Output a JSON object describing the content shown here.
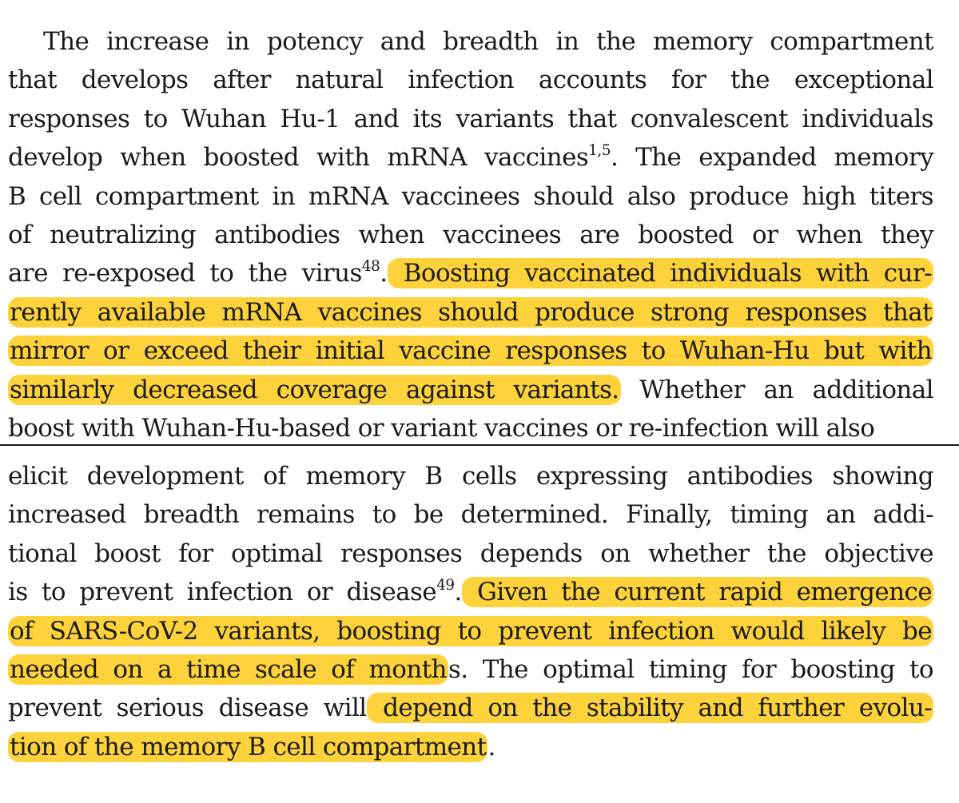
{
  "paragraph_top": {
    "lines": [
      [
        {
          "t": "The increase in potency and breadth in the memory compartment"
        }
      ],
      [
        {
          "t": "that develops after natural infection accounts for the exceptional"
        }
      ],
      [
        {
          "t": "responses to Wuhan Hu-1 and its variants that convalescent individuals"
        }
      ],
      [
        {
          "t": "develop when boosted with mRNA vaccines"
        },
        {
          "t": "1,5",
          "sup": true
        },
        {
          "t": ". The expanded memory"
        }
      ],
      [
        {
          "t": "B cell compartment in mRNA vaccinees should also produce high titers"
        }
      ],
      [
        {
          "t": "of neutralizing antibodies when vaccinees are boosted or when they"
        }
      ],
      [
        {
          "t": "are re-exposed to the virus"
        },
        {
          "t": "48",
          "sup": true
        },
        {
          "t": "."
        },
        {
          "t": " Boosting vaccinated individuals with cur-",
          "hl": true
        }
      ],
      [
        {
          "t": "rently available mRNA vaccines should produce strong responses that",
          "hl": true
        }
      ],
      [
        {
          "t": "mirror or exceed their initial vaccine responses to Wuhan-Hu but with",
          "hl": true
        }
      ],
      [
        {
          "t": "similarly decreased coverage against variants.",
          "hl": true
        },
        {
          "t": " Whether an additional"
        }
      ],
      [
        {
          "t": "boost with Wuhan-Hu-based or variant vaccines or re-infection will also"
        }
      ]
    ]
  },
  "paragraph_bottom": {
    "lines": [
      [
        {
          "t": "elicit development of memory B cells expressing antibodies showing"
        }
      ],
      [
        {
          "t": "increased breadth remains to be determined. Finally, timing an addi-"
        }
      ],
      [
        {
          "t": "tional boost for optimal responses depends on whether the objective"
        }
      ],
      [
        {
          "t": "is to prevent infection or disease"
        },
        {
          "t": "49",
          "sup": true
        },
        {
          "t": "."
        },
        {
          "t": " Given the current rapid emergence",
          "hl": true
        }
      ],
      [
        {
          "t": "of SARS-CoV-2 variants, boosting to prevent infection would likely be",
          "hl": true
        }
      ],
      [
        {
          "t": "needed on a time scale of month",
          "hl": true
        },
        {
          "t": "s. The optimal timing for boosting to"
        }
      ],
      [
        {
          "t": "prevent serious disease will"
        },
        {
          "t": " depend on the stability and further evolu-",
          "hl": true
        }
      ],
      [
        {
          "t": "tion of the memory B cell compartment",
          "hl": true
        },
        {
          "t": "."
        }
      ]
    ]
  },
  "colors": {
    "highlight": "#fdd23a",
    "text": "#1a1a1a",
    "divider": "#1a1a1a"
  }
}
